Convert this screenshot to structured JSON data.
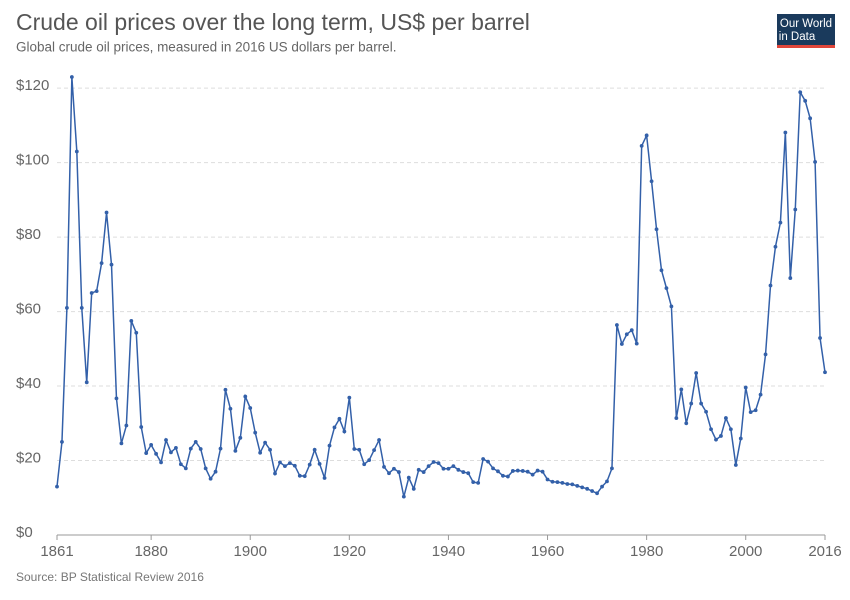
{
  "chart_data": {
    "type": "line",
    "title": "Crude oil prices over the long term, US$ per barrel",
    "subtitle": "Global crude oil prices, measured in 2016 US dollars per barrel.",
    "source": "Source: BP Statistical Review 2016",
    "logo": [
      "Our World",
      "in Data"
    ],
    "x": [
      1861,
      1862,
      1863,
      1864,
      1865,
      1866,
      1867,
      1868,
      1869,
      1870,
      1871,
      1872,
      1873,
      1874,
      1875,
      1876,
      1877,
      1878,
      1879,
      1880,
      1881,
      1882,
      1883,
      1884,
      1885,
      1886,
      1887,
      1888,
      1889,
      1890,
      1891,
      1892,
      1893,
      1894,
      1895,
      1896,
      1897,
      1898,
      1899,
      1900,
      1901,
      1902,
      1903,
      1904,
      1905,
      1906,
      1907,
      1908,
      1909,
      1910,
      1911,
      1912,
      1913,
      1914,
      1915,
      1916,
      1917,
      1918,
      1919,
      1920,
      1921,
      1922,
      1923,
      1924,
      1925,
      1926,
      1927,
      1928,
      1929,
      1930,
      1931,
      1932,
      1933,
      1934,
      1935,
      1936,
      1937,
      1938,
      1939,
      1940,
      1941,
      1942,
      1943,
      1944,
      1945,
      1946,
      1947,
      1948,
      1949,
      1950,
      1951,
      1952,
      1953,
      1954,
      1955,
      1956,
      1957,
      1958,
      1959,
      1960,
      1961,
      1962,
      1963,
      1964,
      1965,
      1966,
      1967,
      1968,
      1969,
      1970,
      1971,
      1972,
      1973,
      1974,
      1975,
      1976,
      1977,
      1978,
      1979,
      1980,
      1981,
      1982,
      1983,
      1984,
      1985,
      1986,
      1987,
      1988,
      1989,
      1990,
      1991,
      1992,
      1993,
      1994,
      1995,
      1996,
      1997,
      1998,
      1999,
      2000,
      2001,
      2002,
      2003,
      2004,
      2005,
      2006,
      2007,
      2008,
      2009,
      2010,
      2011,
      2012,
      2013,
      2014,
      2015,
      2016
    ],
    "series": [
      {
        "name": "Crude oil price",
        "color": "#3360a9",
        "values": [
          13.0,
          25.0,
          61.0,
          123.0,
          103.0,
          61.0,
          41.0,
          65.0,
          65.5,
          73.0,
          86.6,
          72.6,
          36.7,
          24.6,
          29.4,
          57.5,
          54.3,
          29.0,
          22.0,
          24.2,
          21.8,
          19.5,
          25.5,
          22.2,
          23.4,
          19.0,
          17.9,
          23.2,
          25.0,
          23.1,
          17.9,
          15.1,
          17.0,
          23.2,
          39.0,
          33.9,
          22.6,
          26.1,
          37.2,
          34.1,
          27.5,
          22.1,
          24.8,
          22.9,
          16.5,
          19.5,
          18.5,
          19.3,
          18.6,
          15.9,
          15.8,
          18.9,
          22.9,
          19.1,
          15.3,
          24.0,
          28.9,
          31.2,
          27.8,
          36.9,
          23.1,
          22.9,
          19.0,
          20.1,
          22.8,
          25.5,
          18.3,
          16.6,
          17.8,
          16.9,
          10.3,
          15.4,
          12.4,
          17.5,
          16.9,
          18.5,
          19.6,
          19.3,
          17.8,
          17.8,
          18.5,
          17.5,
          16.9,
          16.6,
          14.2,
          14.0,
          20.4,
          19.7,
          17.9,
          17.1,
          15.9,
          15.7,
          17.2,
          17.3,
          17.2,
          17.0,
          16.2,
          17.3,
          17.0,
          14.9,
          14.3,
          14.2,
          14.0,
          13.7,
          13.6,
          13.2,
          12.8,
          12.4,
          11.8,
          11.2,
          13.0,
          14.4,
          17.9,
          56.4,
          51.3,
          53.9,
          55.0,
          51.4,
          104.5,
          107.3,
          95.0,
          82.1,
          71.1,
          66.3,
          61.4,
          31.4,
          39.1,
          30.0,
          35.3,
          43.5,
          35.3,
          33.1,
          28.4,
          25.6,
          26.6,
          31.4,
          28.4,
          18.8,
          25.9,
          39.6,
          33.0,
          33.5,
          37.7,
          48.5,
          67.0,
          77.4,
          83.9,
          108.1,
          69.0,
          87.4,
          118.9,
          116.6,
          111.9,
          100.2,
          52.9,
          43.7
        ]
      }
    ],
    "xlim": [
      1861,
      2016
    ],
    "xticks": [
      1861,
      1880,
      1900,
      1920,
      1940,
      1960,
      1980,
      2000,
      2016
    ],
    "ylim": [
      0,
      123
    ],
    "yticks": [
      {
        "value": 0,
        "label": "$0"
      },
      {
        "value": 20,
        "label": "$20"
      },
      {
        "value": 40,
        "label": "$40"
      },
      {
        "value": 60,
        "label": "$60"
      },
      {
        "value": 80,
        "label": "$80"
      },
      {
        "value": 100,
        "label": "$100"
      },
      {
        "value": 120,
        "label": "$120"
      }
    ],
    "grid": true
  }
}
